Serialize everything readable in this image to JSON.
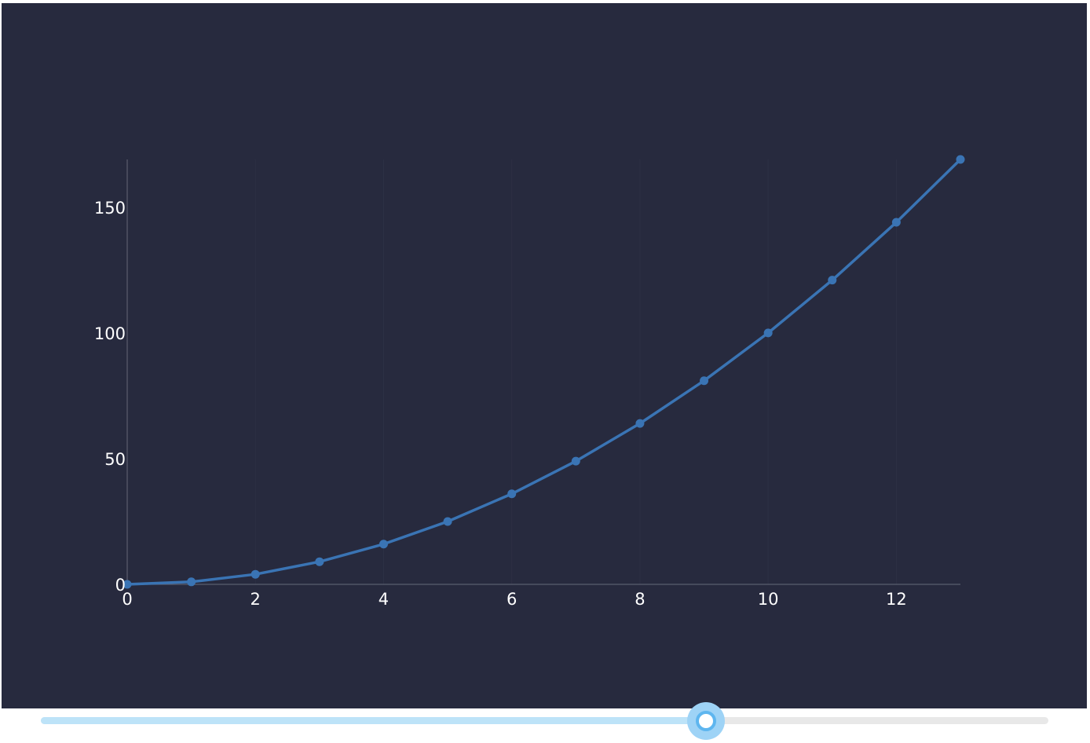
{
  "colors": {
    "background": "#272a3e",
    "plot_background": "#262a3e",
    "line": "#3a74b4",
    "axis": "#5a5d6e",
    "grid": "#2d3044",
    "tick_text": "#ffffff",
    "slider_rail": "#e8e8e8",
    "slider_track": "#bde3f8",
    "slider_thumb": "#9ed3f6"
  },
  "chart_data": {
    "type": "line",
    "markers": true,
    "x": [
      0,
      1,
      2,
      3,
      4,
      5,
      6,
      7,
      8,
      9,
      10,
      11,
      12,
      13
    ],
    "series": [
      {
        "values": [
          0,
          1,
          4,
          9,
          16,
          25,
          36,
          49,
          64,
          81,
          100,
          121,
          144,
          169
        ]
      }
    ],
    "xlim": [
      0,
      13
    ],
    "ylim": [
      0,
      169
    ],
    "x_ticks": [
      0,
      2,
      4,
      6,
      8,
      10,
      12
    ],
    "x_tick_labels": [
      "0",
      "2",
      "4",
      "6",
      "8",
      "10",
      "12"
    ],
    "y_ticks": [
      0,
      50,
      100,
      150
    ],
    "y_tick_labels": [
      "0",
      "50",
      "100",
      "150"
    ],
    "title": "",
    "xlabel": "",
    "ylabel": "",
    "grid": true,
    "legend": "none"
  },
  "slider": {
    "value": 0.66
  }
}
